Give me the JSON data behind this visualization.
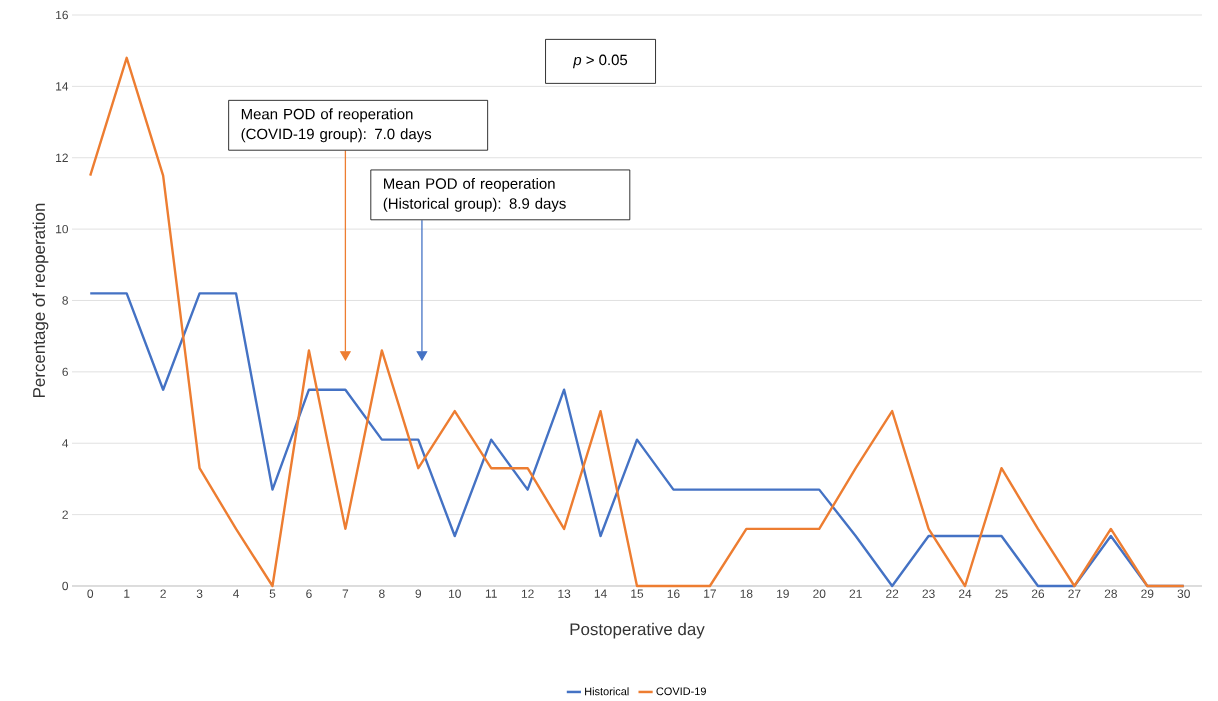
{
  "chart_data": {
    "type": "line",
    "xlabel": "Postoperative day",
    "ylabel": "Percentage of reoperation",
    "categories": [
      "0",
      "1",
      "2",
      "3",
      "4",
      "5",
      "6",
      "7",
      "8",
      "9",
      "10",
      "11",
      "12",
      "13",
      "14",
      "15",
      "16",
      "17",
      "18",
      "19",
      "20",
      "21",
      "22",
      "23",
      "24",
      "25",
      "26",
      "27",
      "28",
      "29",
      "30"
    ],
    "series": [
      {
        "name": "Historical",
        "color": "#4472c4",
        "values": [
          8.2,
          8.2,
          5.5,
          8.2,
          8.2,
          2.7,
          5.5,
          5.5,
          4.1,
          4.1,
          1.4,
          4.1,
          2.7,
          5.5,
          1.4,
          4.1,
          2.7,
          2.7,
          2.7,
          2.7,
          2.7,
          1.4,
          0,
          1.4,
          1.4,
          1.4,
          0,
          0,
          1.4,
          0,
          0
        ]
      },
      {
        "name": "COVID-19",
        "color": "#ed7d31",
        "values": [
          11.5,
          14.8,
          11.5,
          3.3,
          1.6,
          0,
          6.6,
          1.6,
          6.6,
          3.3,
          4.9,
          3.3,
          3.3,
          1.6,
          4.9,
          0,
          0,
          0,
          1.6,
          1.6,
          1.6,
          3.3,
          4.9,
          1.6,
          0,
          3.3,
          1.6,
          0,
          1.6,
          0,
          0
        ]
      }
    ],
    "ylim": [
      0,
      16
    ],
    "yticks": [
      0,
      2,
      4,
      6,
      8,
      10,
      12,
      14,
      16
    ],
    "grid": "y",
    "legend": "bottom",
    "line_style": "solid",
    "annotations": [
      "Mean POD of reoperation (COVID-19 group): 7.0 days",
      "Mean POD of reoperation (Historical group): 8.9 days",
      "*p* > 0.05"
    ]
  }
}
